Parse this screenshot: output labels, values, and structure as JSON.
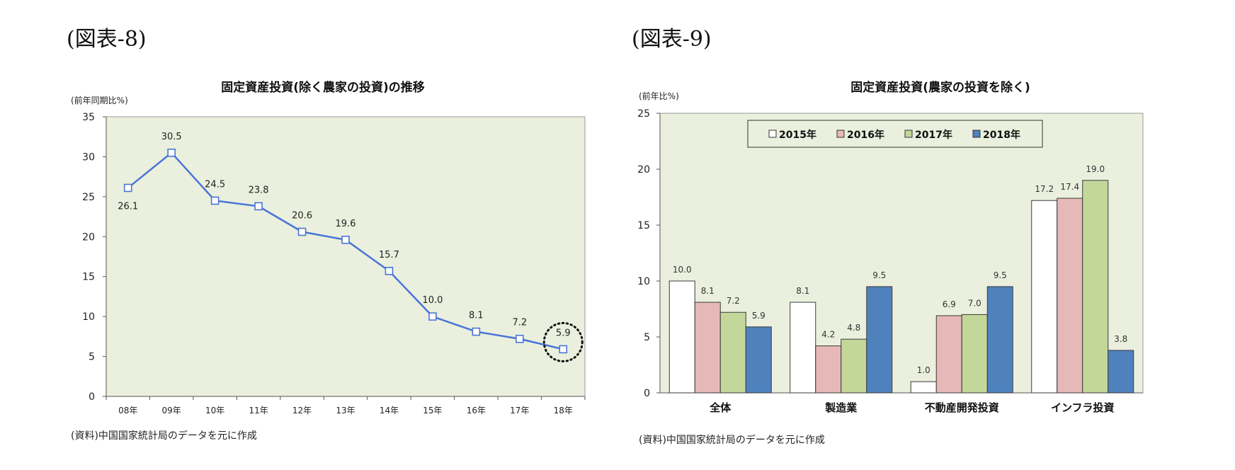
{
  "figures": {
    "left_label": "(図表-8)",
    "right_label": "(図表-9)"
  },
  "chart_data": [
    {
      "type": "line",
      "title": "固定資産投資(除く農家の投資)の推移",
      "ylabel": "(前年同期比%)",
      "xlabel": "",
      "ylim": [
        0,
        35
      ],
      "yticks": [
        0,
        5,
        10,
        15,
        20,
        25,
        30,
        35
      ],
      "categories": [
        "08年",
        "09年",
        "10年",
        "11年",
        "12年",
        "13年",
        "14年",
        "15年",
        "16年",
        "17年",
        "18年"
      ],
      "series": [
        {
          "values": [
            26.1,
            30.5,
            24.5,
            23.8,
            20.6,
            19.6,
            15.7,
            10.0,
            8.1,
            7.2,
            5.9
          ]
        }
      ],
      "data_labels": [
        "26.1",
        "30.5",
        "24.5",
        "23.8",
        "20.6",
        "19.6",
        "15.7",
        "10.0",
        "8.1",
        "7.2",
        "5.9"
      ],
      "grid": false,
      "line_color": "#4a74d8",
      "plot_bg": "#eaf0dd",
      "highlight": {
        "index": 10,
        "style": "dotted-circle"
      },
      "source": "(資料)中国国家統計局のデータを元に作成"
    },
    {
      "type": "bar",
      "title": "固定資産投資(農家の投資を除く)",
      "ylabel": "(前年比%)",
      "xlabel": "",
      "ylim": [
        0,
        25
      ],
      "yticks": [
        0,
        5,
        10,
        15,
        20,
        25
      ],
      "categories": [
        "全体",
        "製造業",
        "不動産開発投資",
        "インフラ投資"
      ],
      "series": [
        {
          "name": "2015年",
          "values": [
            10.0,
            8.1,
            1.0,
            17.2
          ],
          "labels": [
            "10.0",
            "8.1",
            "1.0",
            "17.2"
          ],
          "color": "#ffffff"
        },
        {
          "name": "2016年",
          "values": [
            8.1,
            4.2,
            6.9,
            17.4
          ],
          "labels": [
            "8.1",
            "4.2",
            "6.9",
            "17.4"
          ],
          "color": "#e6b8b7"
        },
        {
          "name": "2017年",
          "values": [
            7.2,
            4.8,
            7.0,
            19.0
          ],
          "labels": [
            "7.2",
            "4.8",
            "7.0",
            "19.0"
          ],
          "color": "#c4d79b"
        },
        {
          "name": "2018年",
          "values": [
            5.9,
            9.5,
            9.5,
            3.8
          ],
          "labels": [
            "5.9",
            "9.5",
            "9.5",
            "3.8"
          ],
          "color": "#4f81bd"
        }
      ],
      "grid": false,
      "legend": "top-center",
      "plot_bg": "#eaf0dd",
      "source": "(資料)中国国家統計局のデータを元に作成"
    }
  ]
}
